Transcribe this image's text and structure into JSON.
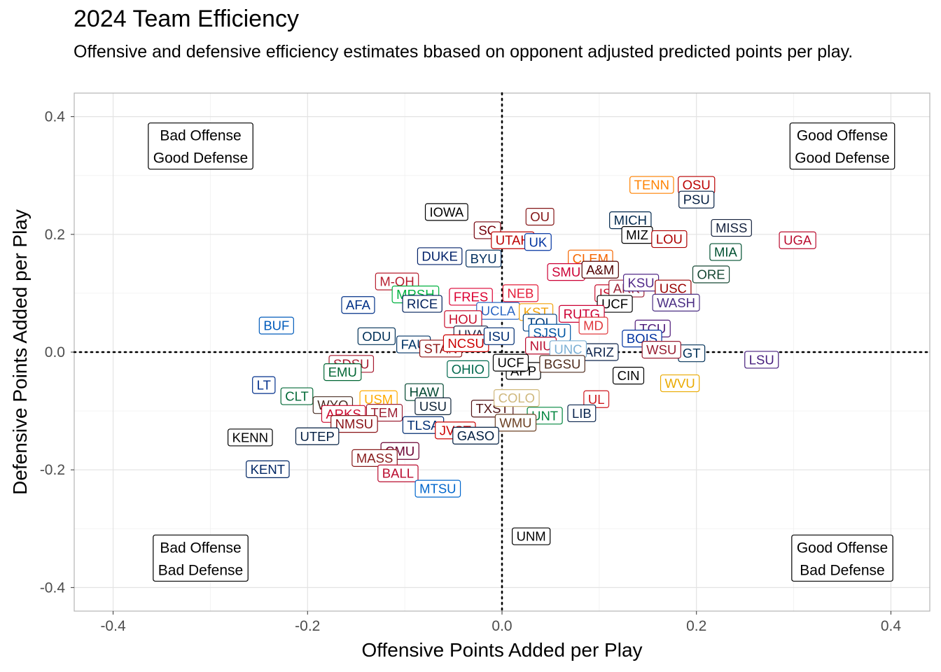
{
  "title": "2024 Team Efficiency",
  "subtitle": "Offensive and defensive efficiency estimates bbased on opponent adjusted predicted points per play.",
  "chart_data": {
    "type": "scatter",
    "xlabel": "Offensive Points Added per Play",
    "ylabel": "Defensive Points Added per Play",
    "xlim": [
      -0.44,
      0.44
    ],
    "ylim": [
      -0.44,
      0.44
    ],
    "xticks": [
      -0.4,
      -0.2,
      0.0,
      0.2,
      0.4
    ],
    "yticks": [
      -0.4,
      -0.2,
      0.0,
      0.2,
      0.4
    ],
    "xtick_labels": [
      "-0.4",
      "-0.2",
      "0.0",
      "0.2",
      "0.4"
    ],
    "ytick_labels": [
      "-0.4",
      "-0.2",
      "0.0",
      "0.2",
      "0.4"
    ],
    "grid": true,
    "reference_lines": {
      "x": 0,
      "y": 0,
      "style": "dotted"
    },
    "quadrant_labels": [
      {
        "lines": [
          "Bad Offense",
          "Good Defense"
        ],
        "x": -0.31,
        "y": 0.35
      },
      {
        "lines": [
          "Good Offense",
          "Good Defense"
        ],
        "x": 0.35,
        "y": 0.35
      },
      {
        "lines": [
          "Bad Offense",
          "Bad Defense"
        ],
        "x": -0.31,
        "y": -0.35
      },
      {
        "lines": [
          "Good Offense",
          "Bad Defense"
        ],
        "x": 0.35,
        "y": -0.35
      }
    ],
    "points": [
      {
        "label": "TENN",
        "x": 0.154,
        "y": 0.284,
        "color": "#FF8200"
      },
      {
        "label": "OSU",
        "x": 0.2,
        "y": 0.284,
        "color": "#BB0000"
      },
      {
        "label": "PSU",
        "x": 0.2,
        "y": 0.259,
        "color": "#041E42"
      },
      {
        "label": "MICH",
        "x": 0.132,
        "y": 0.224,
        "color": "#00274C"
      },
      {
        "label": "MIZ",
        "x": 0.139,
        "y": 0.199,
        "color": "#000000"
      },
      {
        "label": "LOU",
        "x": 0.172,
        "y": 0.192,
        "color": "#AD0000"
      },
      {
        "label": "MISS",
        "x": 0.236,
        "y": 0.211,
        "color": "#14213D"
      },
      {
        "label": "UGA",
        "x": 0.304,
        "y": 0.19,
        "color": "#BA0C2F"
      },
      {
        "label": "MIA",
        "x": 0.23,
        "y": 0.17,
        "color": "#005030"
      },
      {
        "label": "ORE",
        "x": 0.215,
        "y": 0.132,
        "color": "#154733"
      },
      {
        "label": "LSU",
        "x": 0.267,
        "y": -0.013,
        "color": "#461D7C"
      },
      {
        "label": "GT",
        "x": 0.195,
        "y": -0.002,
        "color": "#003057"
      },
      {
        "label": "WVU",
        "x": 0.183,
        "y": -0.053,
        "color": "#EAAA00"
      },
      {
        "label": "CIN",
        "x": 0.13,
        "y": -0.04,
        "color": "#000000"
      },
      {
        "label": "UL",
        "x": 0.097,
        "y": -0.08,
        "color": "#CE181E"
      },
      {
        "label": "LIB",
        "x": 0.082,
        "y": -0.104,
        "color": "#0A254E"
      },
      {
        "label": "UNM",
        "x": 0.03,
        "y": -0.313,
        "color": "#000000"
      },
      {
        "label": "IOWA",
        "x": -0.057,
        "y": 0.238,
        "color": "#000000"
      },
      {
        "label": "SC",
        "x": -0.015,
        "y": 0.207,
        "color": "#73000A"
      },
      {
        "label": "OU",
        "x": 0.039,
        "y": 0.23,
        "color": "#841617"
      },
      {
        "label": "UTAH",
        "x": 0.011,
        "y": 0.19,
        "color": "#BE0000"
      },
      {
        "label": "UK",
        "x": 0.037,
        "y": 0.187,
        "color": "#0033A0"
      },
      {
        "label": "DUKE",
        "x": -0.064,
        "y": 0.163,
        "color": "#012169"
      },
      {
        "label": "BYU",
        "x": -0.019,
        "y": 0.159,
        "color": "#002E5D"
      },
      {
        "label": "CLEM",
        "x": 0.091,
        "y": 0.159,
        "color": "#F56600"
      },
      {
        "label": "SMU",
        "x": 0.066,
        "y": 0.136,
        "color": "#CC0035"
      },
      {
        "label": "A&M",
        "x": 0.101,
        "y": 0.14,
        "color": "#500000"
      },
      {
        "label": "M-OH",
        "x": -0.108,
        "y": 0.12,
        "color": "#B61E2E"
      },
      {
        "label": "MRSH",
        "x": -0.089,
        "y": 0.098,
        "color": "#00B140"
      },
      {
        "label": "FRES",
        "x": -0.032,
        "y": 0.094,
        "color": "#DB0032"
      },
      {
        "label": "NEB",
        "x": 0.019,
        "y": 0.1,
        "color": "#E41C38"
      },
      {
        "label": "AFA",
        "x": -0.148,
        "y": 0.08,
        "color": "#003087"
      },
      {
        "label": "RICE",
        "x": -0.082,
        "y": 0.082,
        "color": "#00205B"
      },
      {
        "label": "ISU",
        "x": 0.111,
        "y": 0.1,
        "color": "#C8102E"
      },
      {
        "label": "ARK",
        "x": 0.128,
        "y": 0.108,
        "color": "#9D2235"
      },
      {
        "label": "KSU",
        "x": 0.143,
        "y": 0.118,
        "color": "#512888"
      },
      {
        "label": "USC",
        "x": 0.176,
        "y": 0.108,
        "color": "#990000"
      },
      {
        "label": "UCF",
        "x": 0.116,
        "y": 0.082,
        "color": "#000000"
      },
      {
        "label": "WASH",
        "x": 0.179,
        "y": 0.084,
        "color": "#4B2E83"
      },
      {
        "label": "UCLA",
        "x": -0.004,
        "y": 0.07,
        "color": "#2D68C4"
      },
      {
        "label": "KST",
        "x": 0.035,
        "y": 0.068,
        "color": "#F1A20B"
      },
      {
        "label": "RUTG",
        "x": 0.082,
        "y": 0.065,
        "color": "#CC0033"
      },
      {
        "label": "HOU",
        "x": -0.04,
        "y": 0.056,
        "color": "#C8102E"
      },
      {
        "label": "TOL",
        "x": 0.039,
        "y": 0.05,
        "color": "#003E7E"
      },
      {
        "label": "MD",
        "x": 0.094,
        "y": 0.045,
        "color": "#E03A3E"
      },
      {
        "label": "TCU",
        "x": 0.155,
        "y": 0.04,
        "color": "#4D1979"
      },
      {
        "label": "UVA",
        "x": -0.032,
        "y": 0.03,
        "color": "#232D4B"
      },
      {
        "label": "SJSU",
        "x": 0.049,
        "y": 0.033,
        "color": "#0055A2"
      },
      {
        "label": "ODU",
        "x": -0.129,
        "y": 0.027,
        "color": "#003057"
      },
      {
        "label": "BUF",
        "x": -0.232,
        "y": 0.045,
        "color": "#005BBB"
      },
      {
        "label": "BOIS",
        "x": 0.144,
        "y": 0.023,
        "color": "#0033A0"
      },
      {
        "label": "ARIZ",
        "x": 0.1,
        "y": 0.0,
        "color": "#0C234B"
      },
      {
        "label": "WSU",
        "x": 0.164,
        "y": 0.004,
        "color": "#981E32"
      },
      {
        "label": "FAU",
        "x": -0.091,
        "y": 0.013,
        "color": "#003366"
      },
      {
        "label": "STAN",
        "x": -0.063,
        "y": 0.006,
        "color": "#8C1515"
      },
      {
        "label": "NCSU",
        "x": -0.037,
        "y": 0.015,
        "color": "#CC0000"
      },
      {
        "label": "NIU",
        "x": 0.04,
        "y": 0.011,
        "color": "#BA0C2F"
      },
      {
        "label": "UNC",
        "x": 0.068,
        "y": 0.005,
        "color": "#7BAFD4"
      },
      {
        "label": "ISU",
        "x": -0.003,
        "y": 0.027,
        "color": "#002D72"
      },
      {
        "label": "SDSU",
        "x": -0.155,
        "y": -0.02,
        "color": "#A6192E"
      },
      {
        "label": "EMU",
        "x": -0.164,
        "y": -0.034,
        "color": "#006633"
      },
      {
        "label": "OHIO",
        "x": -0.035,
        "y": -0.029,
        "color": "#00694E"
      },
      {
        "label": "APP",
        "x": 0.022,
        "y": -0.032,
        "color": "#000000"
      },
      {
        "label": "BGSU",
        "x": 0.062,
        "y": -0.02,
        "color": "#4F2C1D"
      },
      {
        "label": "UCF",
        "x": 0.009,
        "y": -0.018,
        "color": "#000000"
      },
      {
        "label": "LT",
        "x": -0.245,
        "y": -0.056,
        "color": "#002F8B"
      },
      {
        "label": "CLT",
        "x": -0.211,
        "y": -0.075,
        "color": "#046A38"
      },
      {
        "label": "WYO",
        "x": -0.174,
        "y": -0.09,
        "color": "#492F24"
      },
      {
        "label": "USM",
        "x": -0.127,
        "y": -0.08,
        "color": "#FFAB00"
      },
      {
        "label": "HAW",
        "x": -0.08,
        "y": -0.068,
        "color": "#024731"
      },
      {
        "label": "USU",
        "x": -0.071,
        "y": -0.092,
        "color": "#0F2439"
      },
      {
        "label": "TEM",
        "x": -0.121,
        "y": -0.103,
        "color": "#9D2235"
      },
      {
        "label": "ARKS",
        "x": -0.163,
        "y": -0.105,
        "color": "#CC092F"
      },
      {
        "label": "NMSU",
        "x": -0.152,
        "y": -0.122,
        "color": "#891216"
      },
      {
        "label": "TXST",
        "x": -0.01,
        "y": -0.096,
        "color": "#501214"
      },
      {
        "label": "COLO",
        "x": 0.015,
        "y": -0.078,
        "color": "#CFB87C"
      },
      {
        "label": "UNT",
        "x": 0.044,
        "y": -0.108,
        "color": "#00853E"
      },
      {
        "label": "WMU",
        "x": 0.014,
        "y": -0.12,
        "color": "#6C4023"
      },
      {
        "label": "TLSA",
        "x": -0.081,
        "y": -0.124,
        "color": "#002D72"
      },
      {
        "label": "JVST",
        "x": -0.048,
        "y": -0.133,
        "color": "#CC0000"
      },
      {
        "label": "GASO",
        "x": -0.027,
        "y": -0.142,
        "color": "#011E41"
      },
      {
        "label": "KENN",
        "x": -0.259,
        "y": -0.145,
        "color": "#000000"
      },
      {
        "label": "UTEP",
        "x": -0.19,
        "y": -0.143,
        "color": "#041E42"
      },
      {
        "label": "CMU",
        "x": -0.105,
        "y": -0.168,
        "color": "#6A0032"
      },
      {
        "label": "MASS",
        "x": -0.131,
        "y": -0.18,
        "color": "#881C1C"
      },
      {
        "label": "BALL",
        "x": -0.107,
        "y": -0.206,
        "color": "#BA0C2F"
      },
      {
        "label": "MTSU",
        "x": -0.066,
        "y": -0.232,
        "color": "#0066CC"
      },
      {
        "label": "KENT",
        "x": -0.241,
        "y": -0.199,
        "color": "#002664"
      }
    ]
  }
}
